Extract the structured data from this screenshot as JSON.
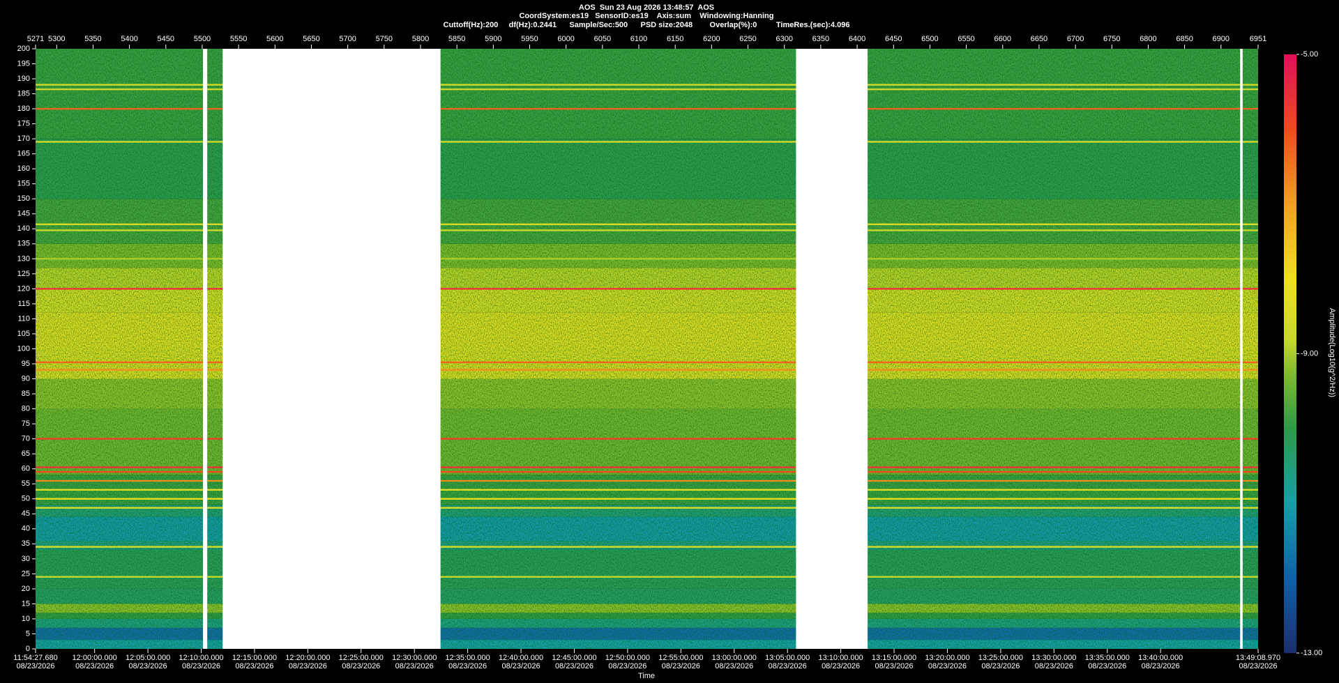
{
  "chart_data": {
    "type": "spectrogram",
    "title": "AOS  Sun 23 Aug 2026 13:48:57  AOS",
    "subtitle": "CoordSystem:es19   SensorID:es19    Axis:sum    Windowing:Hanning",
    "info": "Cuttoff(Hz):200     df(Hz):0.2441      Sample/Sec:500      PSD size:2048        Overlap(%):0         TimeRes.(sec):4.096",
    "xlabel": "Time",
    "colorbar_label": "Amplitude(Log10(g^2/Hz))",
    "xlim": [
      42867.68,
      49748.97
    ],
    "xticks": [
      {
        "value": 42867.68,
        "label": "11:54:27.680",
        "date": "08/23/2026"
      },
      {
        "value": 43200,
        "label": "12:00:00.000",
        "date": "08/23/2026"
      },
      {
        "value": 43500,
        "label": "12:05:00.000",
        "date": "08/23/2026"
      },
      {
        "value": 43800,
        "label": "12:10:00.000",
        "date": "08/23/2026"
      },
      {
        "value": 44100,
        "label": "12:15:00.000",
        "date": "08/23/2026"
      },
      {
        "value": 44400,
        "label": "12:20:00.000",
        "date": "08/23/2026"
      },
      {
        "value": 44700,
        "label": "12:25:00.000",
        "date": "08/23/2026"
      },
      {
        "value": 45000,
        "label": "12:30:00.000",
        "date": "08/23/2026"
      },
      {
        "value": 45300,
        "label": "12:35:00.000",
        "date": "08/23/2026"
      },
      {
        "value": 45600,
        "label": "12:40:00.000",
        "date": "08/23/2026"
      },
      {
        "value": 45900,
        "label": "12:45:00.000",
        "date": "08/23/2026"
      },
      {
        "value": 46200,
        "label": "12:50:00.000",
        "date": "08/23/2026"
      },
      {
        "value": 46500,
        "label": "12:55:00.000",
        "date": "08/23/2026"
      },
      {
        "value": 46800,
        "label": "13:00:00.000",
        "date": "08/23/2026"
      },
      {
        "value": 47100,
        "label": "13:05:00.000",
        "date": "08/23/2026"
      },
      {
        "value": 47400,
        "label": "13:10:00.000",
        "date": "08/23/2026"
      },
      {
        "value": 47700,
        "label": "13:15:00.000",
        "date": "08/23/2026"
      },
      {
        "value": 48000,
        "label": "13:20:00.000",
        "date": "08/23/2026"
      },
      {
        "value": 48300,
        "label": "13:25:00.000",
        "date": "08/23/2026"
      },
      {
        "value": 48600,
        "label": "13:30:00.000",
        "date": "08/23/2026"
      },
      {
        "value": 48900,
        "label": "13:35:00.000",
        "date": "08/23/2026"
      },
      {
        "value": 49200,
        "label": "13:40:00.000",
        "date": "08/23/2026"
      },
      {
        "value": 49748.97,
        "label": "13:49:08.970",
        "date": "08/23/2026"
      }
    ],
    "x2lim": [
      5271,
      6951
    ],
    "x2ticks": [
      5271,
      5300,
      5350,
      5400,
      5450,
      5500,
      5550,
      5600,
      5650,
      5700,
      5750,
      5800,
      5850,
      5900,
      5950,
      6000,
      6050,
      6100,
      6150,
      6200,
      6250,
      6300,
      6350,
      6400,
      6450,
      6500,
      6550,
      6600,
      6650,
      6700,
      6750,
      6800,
      6850,
      6900,
      6951
    ],
    "ylim": [
      0,
      200
    ],
    "yticks": [
      0,
      5,
      10,
      15,
      20,
      25,
      30,
      35,
      40,
      45,
      50,
      55,
      60,
      65,
      70,
      75,
      80,
      85,
      90,
      95,
      100,
      105,
      110,
      115,
      120,
      125,
      130,
      135,
      140,
      145,
      150,
      155,
      160,
      165,
      170,
      175,
      180,
      185,
      190,
      195,
      200
    ],
    "zlim": [
      -13,
      -5
    ],
    "zticks": [
      {
        "value": -5,
        "label": "-5.00"
      },
      {
        "value": -9,
        "label": "-9.00"
      },
      {
        "value": -13,
        "label": "-13.00"
      }
    ],
    "colorscale": [
      [
        -13,
        "#1b2f6e"
      ],
      [
        -12,
        "#1060a8"
      ],
      [
        -11,
        "#14a0a8"
      ],
      [
        -10,
        "#2e9a48"
      ],
      [
        -9.3,
        "#7ab92e"
      ],
      [
        -8.8,
        "#c8d82a"
      ],
      [
        -8,
        "#f0e020"
      ],
      [
        -7,
        "#f0a020"
      ],
      [
        -6,
        "#f04a1e"
      ],
      [
        -5,
        "#e0105a"
      ]
    ],
    "bands": [
      {
        "from": 0,
        "to": 3,
        "value": -11.0
      },
      {
        "from": 3,
        "to": 7,
        "value": -11.8
      },
      {
        "from": 7,
        "to": 10,
        "value": -10.6
      },
      {
        "from": 10,
        "to": 12,
        "value": -10.0
      },
      {
        "from": 12,
        "to": 15,
        "value": -9.2
      },
      {
        "from": 15,
        "to": 20,
        "value": -10.3
      },
      {
        "from": 20,
        "to": 33,
        "value": -10.2
      },
      {
        "from": 33,
        "to": 36,
        "value": -10.6
      },
      {
        "from": 36,
        "to": 44,
        "value": -11.1
      },
      {
        "from": 44,
        "to": 48,
        "value": -10.5
      },
      {
        "from": 48,
        "to": 58,
        "value": -9.9
      },
      {
        "from": 58,
        "to": 80,
        "value": -9.4
      },
      {
        "from": 80,
        "to": 90,
        "value": -9.2
      },
      {
        "from": 90,
        "to": 100,
        "value": -8.5
      },
      {
        "from": 100,
        "to": 112,
        "value": -8.4
      },
      {
        "from": 112,
        "to": 120,
        "value": -8.6
      },
      {
        "from": 120,
        "to": 127,
        "value": -8.9
      },
      {
        "from": 127,
        "to": 135,
        "value": -9.3
      },
      {
        "from": 135,
        "to": 150,
        "value": -9.8
      },
      {
        "from": 150,
        "to": 170,
        "value": -10.1
      },
      {
        "from": 170,
        "to": 200,
        "value": -9.9
      }
    ],
    "lines": [
      {
        "freq": 188,
        "value": -8.6
      },
      {
        "freq": 186.5,
        "value": -8.7
      },
      {
        "freq": 180,
        "value": -6.3
      },
      {
        "freq": 169,
        "value": -8.6
      },
      {
        "freq": 141.5,
        "value": -8.5
      },
      {
        "freq": 139.5,
        "value": -8.7
      },
      {
        "freq": 130,
        "value": -9.0
      },
      {
        "freq": 120,
        "value": -5.6
      },
      {
        "freq": 95.5,
        "value": -6.3
      },
      {
        "freq": 93,
        "value": -6.8
      },
      {
        "freq": 70,
        "value": -5.8
      },
      {
        "freq": 60.5,
        "value": -5.6
      },
      {
        "freq": 59,
        "value": -6.0
      },
      {
        "freq": 56,
        "value": -6.8
      },
      {
        "freq": 53,
        "value": -8.3
      },
      {
        "freq": 50,
        "value": -8.2
      },
      {
        "freq": 47,
        "value": -8.3
      },
      {
        "freq": 34,
        "value": -8.4
      },
      {
        "freq": 24,
        "value": -8.8
      }
    ],
    "gaps": [
      [
        43810,
        43834
      ],
      [
        43921,
        45147
      ],
      [
        47148,
        47551
      ],
      [
        49648,
        49662
      ]
    ]
  }
}
